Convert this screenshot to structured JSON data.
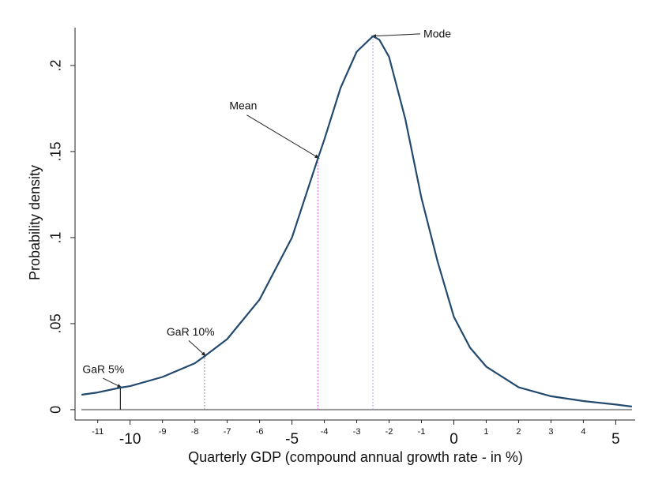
{
  "chart_data": {
    "type": "line",
    "xlabel": "Quarterly GDP (compound annual growth rate - in %)",
    "ylabel": "Probability density",
    "x": [
      -11.5,
      -11,
      -10.3,
      -10,
      -9,
      -8,
      -7.7,
      -7,
      -6,
      -5,
      -4.2,
      -4,
      -3.5,
      -3,
      -2.5,
      -2.3,
      -2,
      -1.5,
      -1,
      -0.5,
      0,
      0.5,
      1,
      2,
      3,
      4,
      5,
      5.5
    ],
    "series": [
      {
        "name": "Probability density",
        "color": "#234a6e",
        "values": [
          0.0087,
          0.01,
          0.0128,
          0.0137,
          0.019,
          0.027,
          0.031,
          0.041,
          0.064,
          0.1,
          0.146,
          0.157,
          0.187,
          0.208,
          0.217,
          0.215,
          0.205,
          0.169,
          0.123,
          0.086,
          0.054,
          0.036,
          0.025,
          0.013,
          0.0078,
          0.005,
          0.003,
          0.0018
        ]
      }
    ],
    "markers": [
      {
        "label": "GaR 5%",
        "x": -10.3,
        "y": 0.0128,
        "color": "#222222"
      },
      {
        "label": "GaR 10%",
        "x": -7.7,
        "y": 0.031,
        "color": "#888888"
      },
      {
        "label": "Mean",
        "x": -4.2,
        "y": 0.146,
        "color": "#d65fd6"
      },
      {
        "label": "Mode",
        "x": -2.5,
        "y": 0.217,
        "color": "#b0a0c8"
      }
    ],
    "xlim": [
      -11.7,
      5.6
    ],
    "ylim": [
      -0.006,
      0.222
    ],
    "xticks": [
      -10,
      -5,
      0,
      5
    ],
    "xticks_minor": [
      -11,
      -9,
      -8,
      -7,
      -6,
      -4,
      -3,
      -2,
      -1,
      1,
      2,
      3,
      4
    ],
    "yticks": [
      0,
      {
        "value": 0.05,
        "label": ".05"
      },
      {
        "value": 0.1,
        "label": ".1"
      },
      {
        "value": 0.15,
        "label": ".15"
      },
      {
        "value": 0.2,
        "label": ".2"
      }
    ]
  }
}
